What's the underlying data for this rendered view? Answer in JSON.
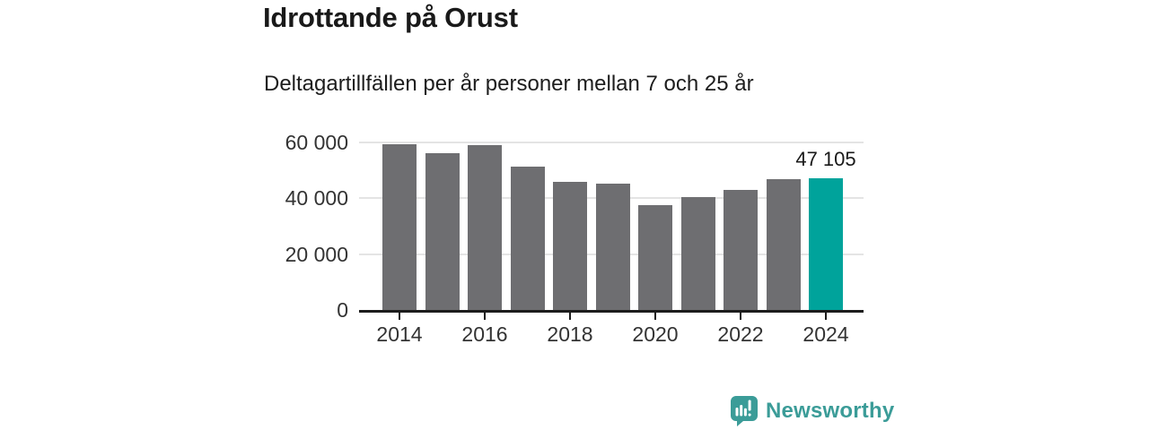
{
  "header": {
    "title": "Idrottande på Orust",
    "subtitle": "Deltagartillfällen per år personer mellan 7 och 25 år"
  },
  "chart_data": {
    "type": "bar",
    "title": "Idrottande på Orust",
    "subtitle": "Deltagartillfällen per år personer mellan 7 och 25 år",
    "categories": [
      2014,
      2015,
      2016,
      2017,
      2018,
      2019,
      2020,
      2021,
      2022,
      2023,
      2024
    ],
    "values": [
      59300,
      56200,
      58900,
      51200,
      46000,
      45100,
      37700,
      40300,
      42900,
      46900,
      47105
    ],
    "highlight_index": 10,
    "highlight_value_label": "47 105",
    "xlabel": "",
    "ylabel": "",
    "ylim": [
      0,
      60000
    ],
    "yticks": [
      {
        "value": 0,
        "label": "0"
      },
      {
        "value": 20000,
        "label": "20 000"
      },
      {
        "value": 40000,
        "label": "40 000"
      },
      {
        "value": 60000,
        "label": "60 000"
      }
    ],
    "xticks": [
      {
        "value": 2014,
        "label": "2014"
      },
      {
        "value": 2016,
        "label": "2016"
      },
      {
        "value": 2018,
        "label": "2018"
      },
      {
        "value": 2020,
        "label": "2020"
      },
      {
        "value": 2022,
        "label": "2022"
      },
      {
        "value": 2024,
        "label": "2024"
      }
    ],
    "grid": "horizontal",
    "legend": "none",
    "colors": {
      "bar": "#6e6e71",
      "highlight": "#00a39b",
      "gridline": "#e4e4e4",
      "axis": "#1c1c1c",
      "tick_text": "#333333",
      "label_text": "#191919"
    }
  },
  "footer": {
    "brand": "Newsworthy",
    "brand_color": "#3b9c98",
    "logo_icon": "bar-chart-speech-bubble-icon"
  }
}
